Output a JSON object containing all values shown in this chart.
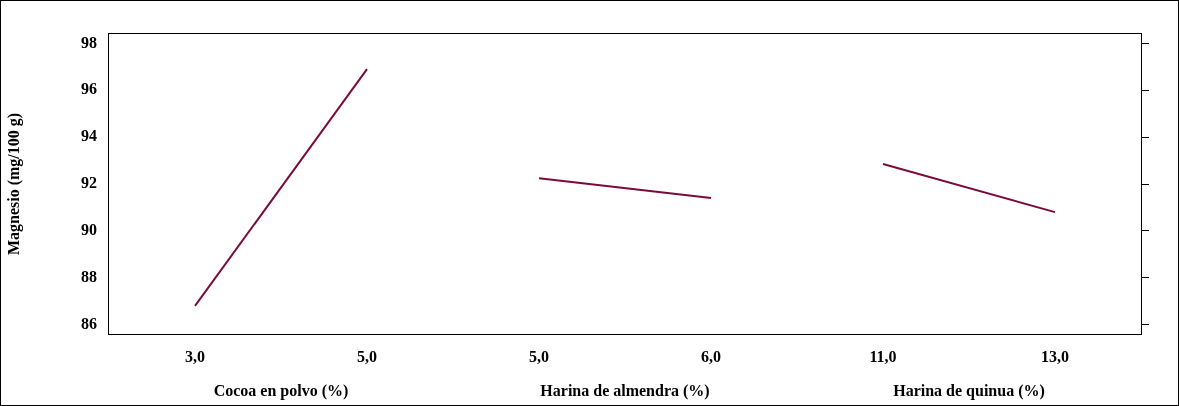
{
  "chart_data": [
    {
      "type": "line",
      "categories": [
        "3,0",
        "5,0"
      ],
      "xlabel": "Cocoa en polvo (%)",
      "ylabel": "Magnesio (mg/100 g)",
      "ylim": [
        85.6,
        98.4
      ],
      "yticks": [
        86,
        88,
        90,
        92,
        94,
        96,
        98
      ],
      "marker": "none",
      "series": [
        {
          "color": "#7b0a3c",
          "values": [
            86.8,
            96.9
          ]
        }
      ]
    },
    {
      "type": "line",
      "categories": [
        "5,0",
        "6,0"
      ],
      "xlabel": "Harina de almendra (%)",
      "ylim": [
        85.6,
        98.4
      ],
      "tick_labels": "x",
      "marker": "none",
      "series": [
        {
          "color": "#7b0a3c",
          "values": [
            92.25,
            91.4
          ]
        }
      ]
    },
    {
      "type": "line",
      "categories": [
        "11,0",
        "13,0"
      ],
      "xlabel": "Harina de quinua (%)",
      "ylim": [
        85.6,
        98.4
      ],
      "tick_labels": "x",
      "marker": "none",
      "series": [
        {
          "color": "#7b0a3c",
          "values": [
            92.85,
            90.8
          ]
        }
      ]
    }
  ]
}
